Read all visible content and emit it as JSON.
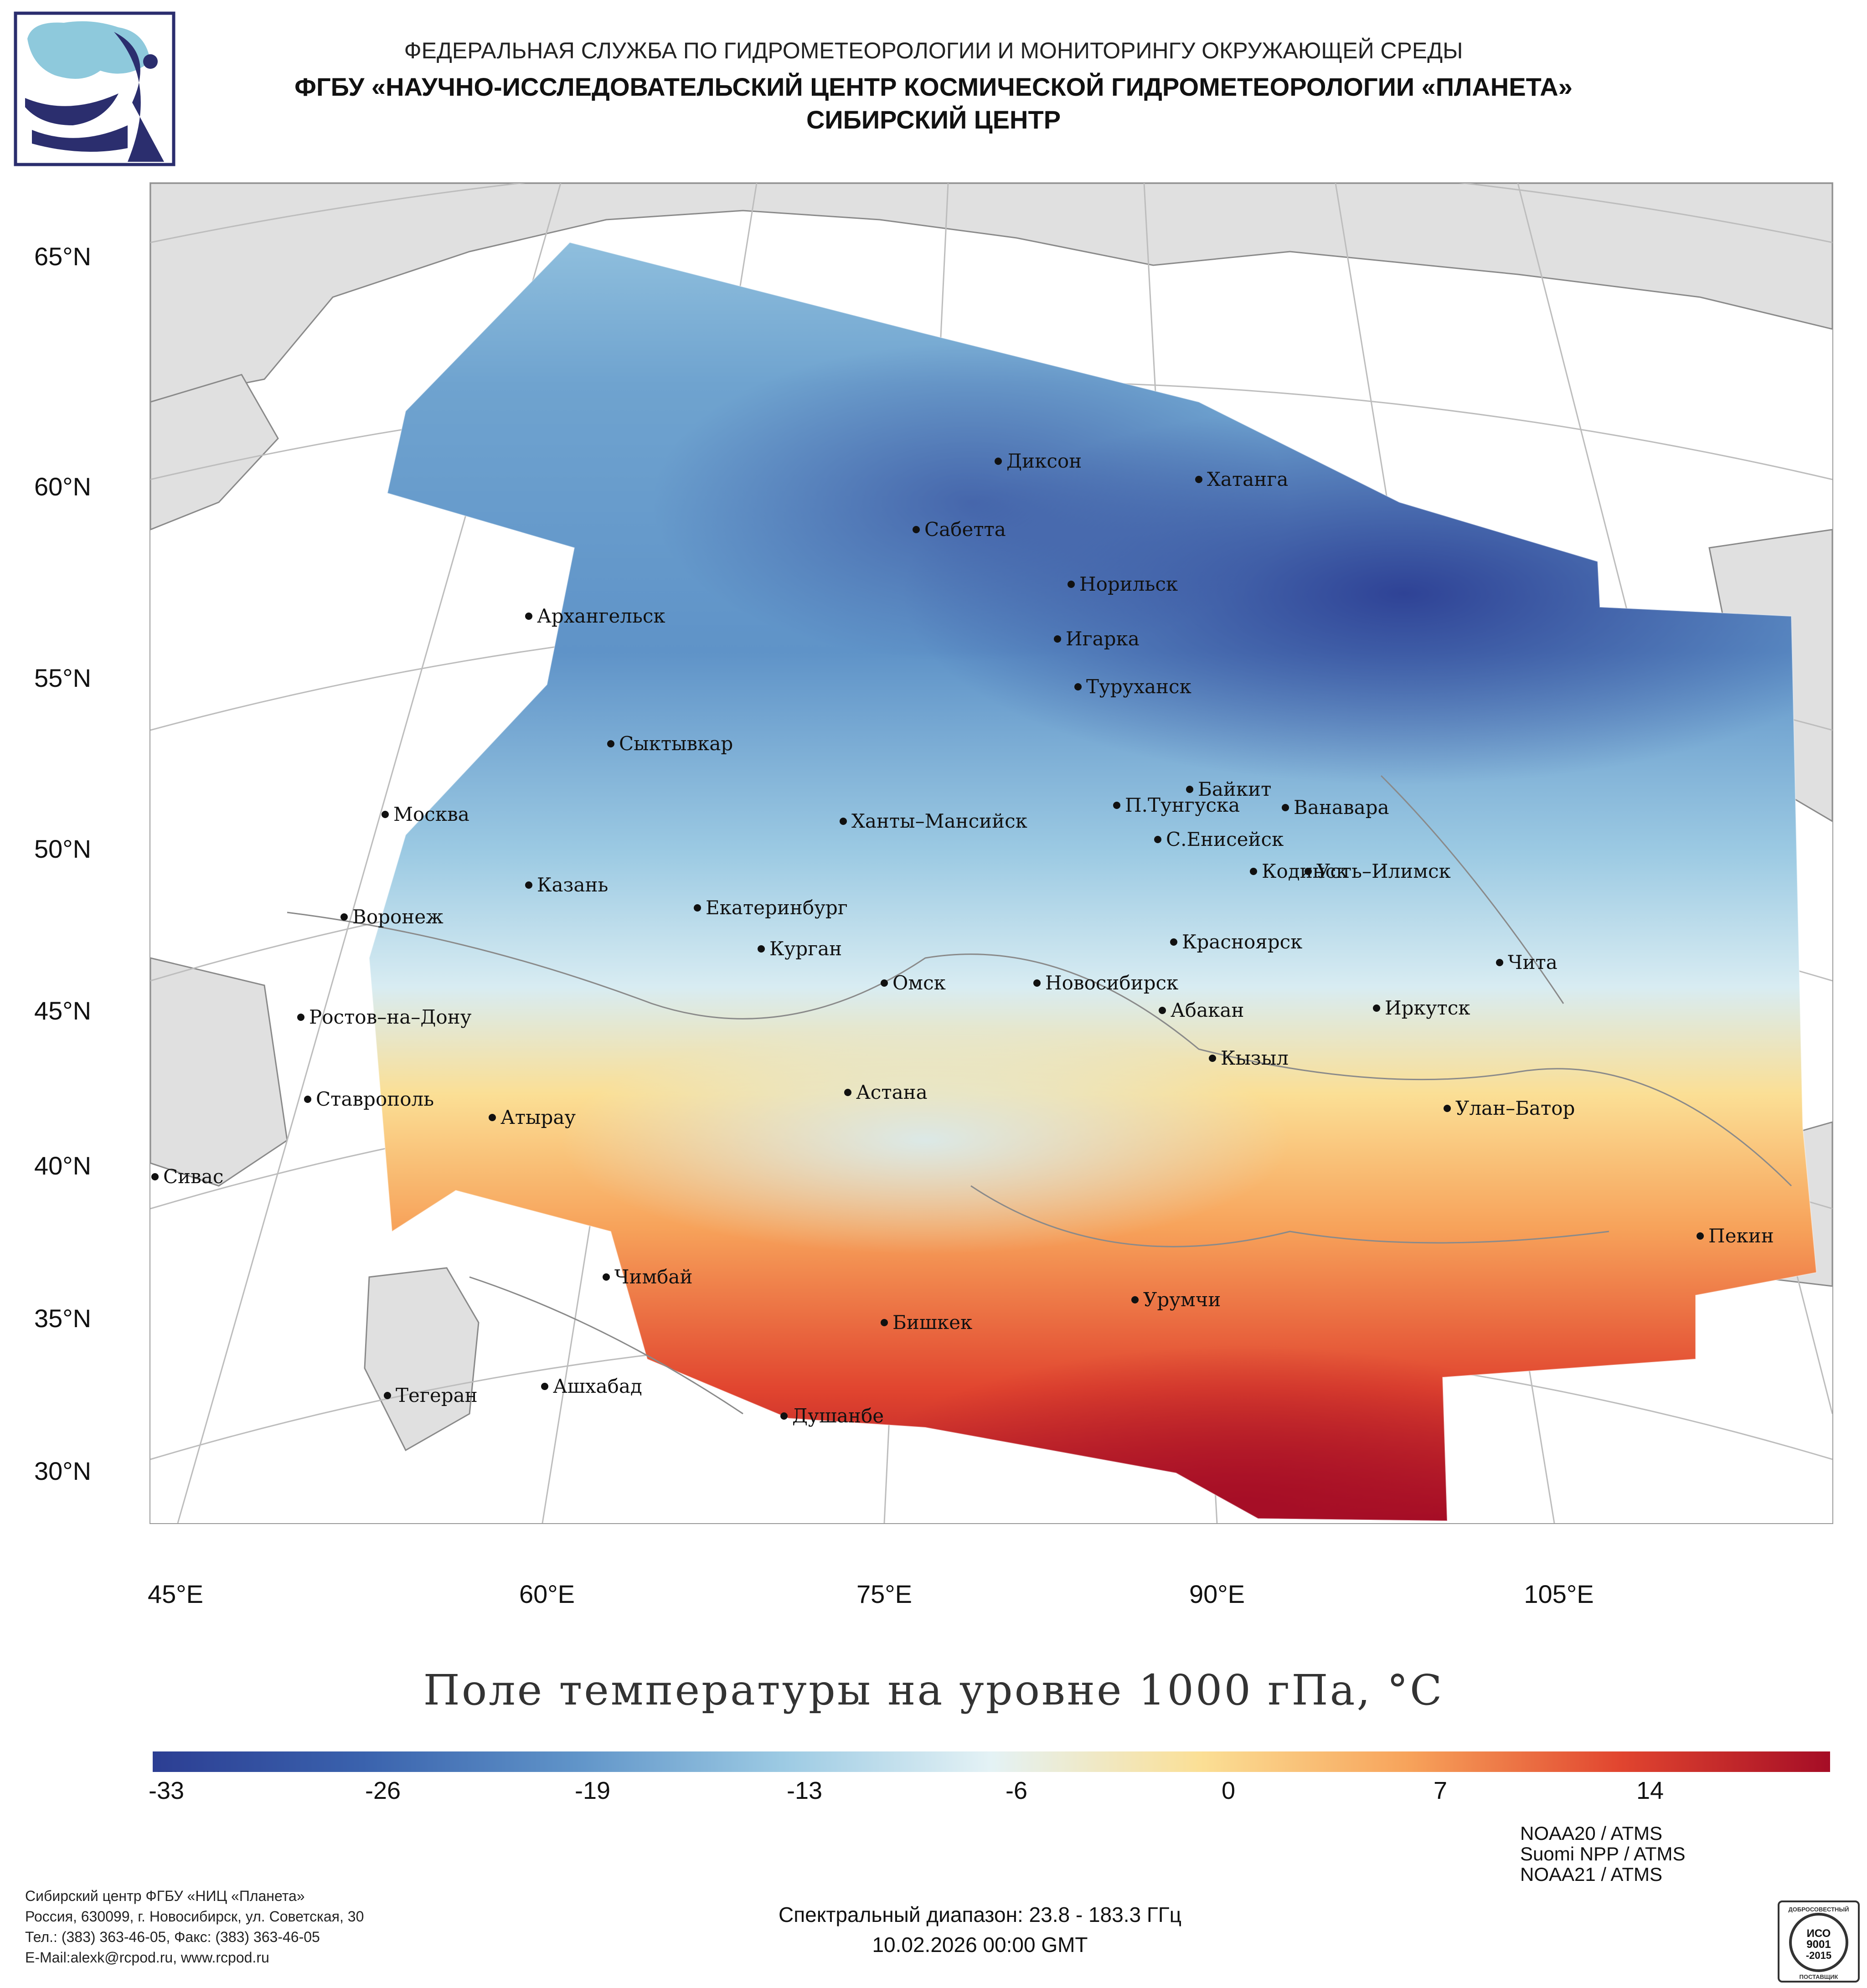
{
  "header": {
    "agency": "ФЕДЕРАЛЬНАЯ СЛУЖБА ПО ГИДРОМЕТЕОРОЛОГИИ И МОНИТОРИНГУ ОКРУЖАЮЩЕЙ СРЕДЫ",
    "center": "ФГБУ «НАУЧНО-ИССЛЕДОВАТЕЛЬСКИЙ ЦЕНТР КОСМИЧЕСКОЙ ГИДРОМЕТЕОРОЛОГИИ «ПЛАНЕТА»",
    "branch": "СИБИРСКИЙ ЦЕНТР",
    "logo_icon": "planeta-logo-icon"
  },
  "map": {
    "latitude_labels": [
      "65°N",
      "60°N",
      "55°N",
      "50°N",
      "45°N",
      "40°N",
      "35°N",
      "30°N"
    ],
    "longitude_labels": [
      "45°E",
      "60°E",
      "75°E",
      "90°E",
      "105°E"
    ],
    "cities": [
      "Диксон",
      "Хатанга",
      "Сабетта",
      "Норильск",
      "Архангельск",
      "Игарка",
      "Туруханск",
      "Сыктывкар",
      "Байкит",
      "П.Тунгуска",
      "Ванавара",
      "Москва",
      "Ханты–Мансийск",
      "С.Енисейск",
      "Кодинск",
      "Усть–Илимск",
      "Казань",
      "Екатеринбург",
      "Воронеж",
      "Красноярск",
      "Курган",
      "Чита",
      "Омск",
      "Новосибирск",
      "Иркутск",
      "Абакан",
      "Ростов–на–Дону",
      "Кызыл",
      "Ставрополь",
      "Астана",
      "Улан–Батор",
      "Атырау",
      "Сивас",
      "Пекин",
      "Чимбай",
      "Урумчи",
      "Бишкек",
      "Ашхабад",
      "Тегеран",
      "Душанбе"
    ],
    "land_color": "#e0e0e0",
    "border_color": "#8a8a8a"
  },
  "chart_data": {
    "type": "heatmap",
    "title": "Поле температуры на уровне 1000 гПа, °C",
    "colorbar": {
      "tick_labels": [
        "-33",
        "-26",
        "-19",
        "-13",
        "-6",
        "0",
        "7",
        "14"
      ],
      "colors": [
        "#2c3e93",
        "#3a62ad",
        "#5f93c8",
        "#9ccae3",
        "#e4f2f5",
        "#fbdf95",
        "#f7a25a",
        "#e1452f",
        "#a50d26"
      ]
    }
  },
  "footer": {
    "org": "Сибирский центр ФГБУ «НИЦ «Планета»",
    "address": "Россия, 630099, г. Новосибирск, ул. Советская, 30",
    "phone": "Тел.: (383) 363-46-05, Факс: (383) 363-46-05",
    "email": "E-Mail:alexk@rcpod.ru, www.rcpod.ru",
    "spectral_range": "Спектральный диапазон: 23.8 - 183.3 ГГц",
    "datetime": "10.02.2026 00:00 GMT",
    "instruments": [
      "NOAA20 / ATMS",
      "Suomi NPP / ATMS",
      "NOAA21 / ATMS"
    ],
    "iso_badge": {
      "top": "ДОБРОСОВЕСТНЫЙ",
      "line1": "ИСО",
      "line2": "9001",
      "line3": "-2015",
      "bottom": "ПОСТАВЩИК"
    }
  }
}
